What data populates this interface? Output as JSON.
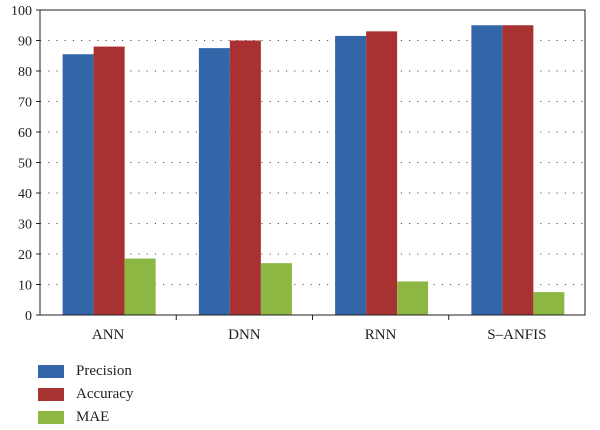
{
  "chart_data": {
    "type": "bar",
    "categories": [
      "ANN",
      "DNN",
      "RNN",
      "S–ANFIS"
    ],
    "series": [
      {
        "name": "Precision",
        "color": "#3366a8",
        "values": [
          85.5,
          87.5,
          91.5,
          95
        ]
      },
      {
        "name": "Accuracy",
        "color": "#a83232",
        "values": [
          88,
          90,
          93,
          95
        ]
      },
      {
        "name": "MAE",
        "color": "#8db743",
        "values": [
          18.5,
          17,
          11,
          7.5
        ]
      }
    ],
    "ylim": [
      0,
      100
    ],
    "yticks": [
      0,
      10,
      20,
      30,
      40,
      50,
      60,
      70,
      80,
      90,
      100
    ],
    "grid": "dotted-horizontal",
    "legend_placement": "bottom-left"
  }
}
